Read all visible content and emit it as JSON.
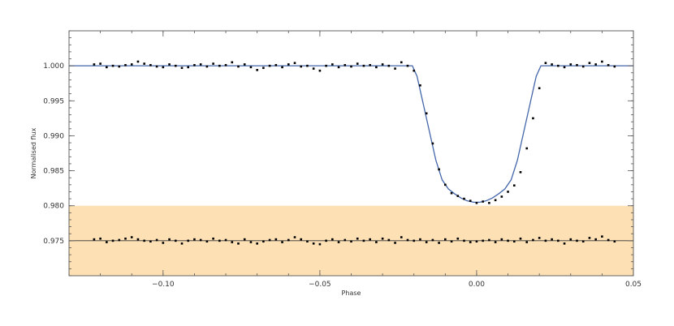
{
  "chart_data": {
    "type": "scatter",
    "title": "",
    "xlabel": "Phase",
    "ylabel": "Normalised flux",
    "xlim": [
      -0.13,
      0.05
    ],
    "ylim": [
      0.97,
      1.005
    ],
    "x_ticks": [
      -0.1,
      -0.05,
      0.0,
      0.05
    ],
    "x_tick_labels": [
      "−0.10",
      "−0.05",
      "0.00",
      "0.05"
    ],
    "y_ticks": [
      0.975,
      0.98,
      0.985,
      0.99,
      0.995,
      1.0
    ],
    "y_tick_labels": [
      "0.975",
      "0.980",
      "0.985",
      "0.990",
      "0.995",
      "1.000"
    ],
    "grid": false,
    "shaded_band": {
      "y_from": 0.97,
      "y_to": 0.98,
      "color": "#fde0b4"
    },
    "series": [
      {
        "role": "model",
        "style": "line",
        "color": "#4466aa",
        "x": [
          -0.13,
          -0.0205,
          -0.019,
          -0.017,
          -0.015,
          -0.013,
          -0.011,
          -0.009,
          -0.007,
          -0.005,
          -0.003,
          -0.001,
          0.0,
          0.001,
          0.003,
          0.005,
          0.007,
          0.009,
          0.011,
          0.013,
          0.015,
          0.017,
          0.019,
          0.0205,
          0.05
        ],
        "y": [
          1.0,
          1.0,
          0.9985,
          0.9945,
          0.9905,
          0.9865,
          0.9837,
          0.9824,
          0.9817,
          0.9811,
          0.9807,
          0.9805,
          0.9805,
          0.9805,
          0.9807,
          0.9811,
          0.9817,
          0.9824,
          0.9837,
          0.9865,
          0.9905,
          0.9945,
          0.9985,
          1.0,
          1.0
        ]
      },
      {
        "role": "data",
        "style": "points",
        "color": "#000000",
        "x": [
          -0.122,
          -0.12,
          -0.118,
          -0.116,
          -0.114,
          -0.112,
          -0.11,
          -0.108,
          -0.106,
          -0.104,
          -0.102,
          -0.1,
          -0.098,
          -0.096,
          -0.094,
          -0.092,
          -0.09,
          -0.088,
          -0.086,
          -0.084,
          -0.082,
          -0.08,
          -0.078,
          -0.076,
          -0.074,
          -0.072,
          -0.07,
          -0.068,
          -0.066,
          -0.064,
          -0.062,
          -0.06,
          -0.058,
          -0.056,
          -0.054,
          -0.052,
          -0.05,
          -0.048,
          -0.046,
          -0.044,
          -0.042,
          -0.04,
          -0.038,
          -0.036,
          -0.034,
          -0.032,
          -0.03,
          -0.028,
          -0.026,
          -0.024,
          -0.022,
          -0.02,
          -0.018,
          -0.016,
          -0.014,
          -0.012,
          -0.01,
          -0.008,
          -0.006,
          -0.004,
          -0.002,
          0.0,
          0.002,
          0.004,
          0.006,
          0.008,
          0.01,
          0.012,
          0.014,
          0.016,
          0.018,
          0.02,
          0.022,
          0.024,
          0.026,
          0.028,
          0.03,
          0.032,
          0.034,
          0.036,
          0.038,
          0.04,
          0.042,
          0.044
        ],
        "y": [
          1.0002,
          1.0003,
          0.9998,
          1.0,
          0.9999,
          1.0001,
          1.0002,
          1.0006,
          1.0003,
          1.0001,
          0.9999,
          0.9998,
          1.0002,
          1.0,
          0.9997,
          0.9998,
          1.0001,
          1.0002,
          0.9999,
          1.0003,
          1.0,
          1.0001,
          1.0005,
          0.9999,
          1.0002,
          0.9998,
          0.9994,
          0.9997,
          1.0,
          1.0001,
          0.9998,
          1.0002,
          1.0004,
          0.9999,
          1.0,
          0.9996,
          0.9993,
          1.0,
          1.0002,
          0.9998,
          1.0001,
          0.9999,
          1.0003,
          1.0,
          1.0001,
          0.9998,
          1.0002,
          1.0,
          0.9996,
          1.0005,
          1.0,
          0.9993,
          0.9972,
          0.9932,
          0.9889,
          0.9852,
          0.983,
          0.9818,
          0.9814,
          0.981,
          0.9807,
          0.9804,
          0.9806,
          0.9804,
          0.9808,
          0.9813,
          0.982,
          0.9829,
          0.9848,
          0.9882,
          0.9925,
          0.9968,
          1.0004,
          1.0002,
          1.0,
          0.9998,
          1.0002,
          1.0001,
          0.9999,
          1.0004,
          1.0002,
          1.0006,
          1.0001,
          0.9999
        ]
      },
      {
        "role": "residuals_baseline",
        "style": "line",
        "color": "#333333",
        "x": [
          -0.13,
          0.05
        ],
        "y": [
          0.975,
          0.975
        ]
      },
      {
        "role": "residuals",
        "style": "points",
        "color": "#000000",
        "x": [
          -0.122,
          -0.12,
          -0.118,
          -0.116,
          -0.114,
          -0.112,
          -0.11,
          -0.108,
          -0.106,
          -0.104,
          -0.102,
          -0.1,
          -0.098,
          -0.096,
          -0.094,
          -0.092,
          -0.09,
          -0.088,
          -0.086,
          -0.084,
          -0.082,
          -0.08,
          -0.078,
          -0.076,
          -0.074,
          -0.072,
          -0.07,
          -0.068,
          -0.066,
          -0.064,
          -0.062,
          -0.06,
          -0.058,
          -0.056,
          -0.054,
          -0.052,
          -0.05,
          -0.048,
          -0.046,
          -0.044,
          -0.042,
          -0.04,
          -0.038,
          -0.036,
          -0.034,
          -0.032,
          -0.03,
          -0.028,
          -0.026,
          -0.024,
          -0.022,
          -0.02,
          -0.018,
          -0.016,
          -0.014,
          -0.012,
          -0.01,
          -0.008,
          -0.006,
          -0.004,
          -0.002,
          0.0,
          0.002,
          0.004,
          0.006,
          0.008,
          0.01,
          0.012,
          0.014,
          0.016,
          0.018,
          0.02,
          0.022,
          0.024,
          0.026,
          0.028,
          0.03,
          0.032,
          0.034,
          0.036,
          0.038,
          0.04,
          0.042,
          0.044
        ],
        "y": [
          0.9752,
          0.9753,
          0.9748,
          0.975,
          0.9751,
          0.9753,
          0.9755,
          0.9752,
          0.975,
          0.9749,
          0.9751,
          0.9747,
          0.9752,
          0.975,
          0.9746,
          0.975,
          0.9752,
          0.9751,
          0.9749,
          0.9753,
          0.975,
          0.9751,
          0.9748,
          0.9746,
          0.9752,
          0.9748,
          0.9746,
          0.9749,
          0.9751,
          0.9752,
          0.9748,
          0.9751,
          0.9755,
          0.9752,
          0.9749,
          0.9746,
          0.9745,
          0.975,
          0.9752,
          0.9748,
          0.9751,
          0.9749,
          0.9753,
          0.975,
          0.9752,
          0.9748,
          0.9753,
          0.9751,
          0.9747,
          0.9755,
          0.9751,
          0.975,
          0.9752,
          0.9748,
          0.9751,
          0.9747,
          0.9752,
          0.9749,
          0.9753,
          0.975,
          0.9748,
          0.9749,
          0.975,
          0.9751,
          0.9748,
          0.9752,
          0.975,
          0.9749,
          0.9753,
          0.9748,
          0.9751,
          0.9754,
          0.975,
          0.9752,
          0.975,
          0.9746,
          0.9752,
          0.975,
          0.9749,
          0.9754,
          0.9752,
          0.9756,
          0.9751,
          0.9749
        ]
      }
    ]
  }
}
